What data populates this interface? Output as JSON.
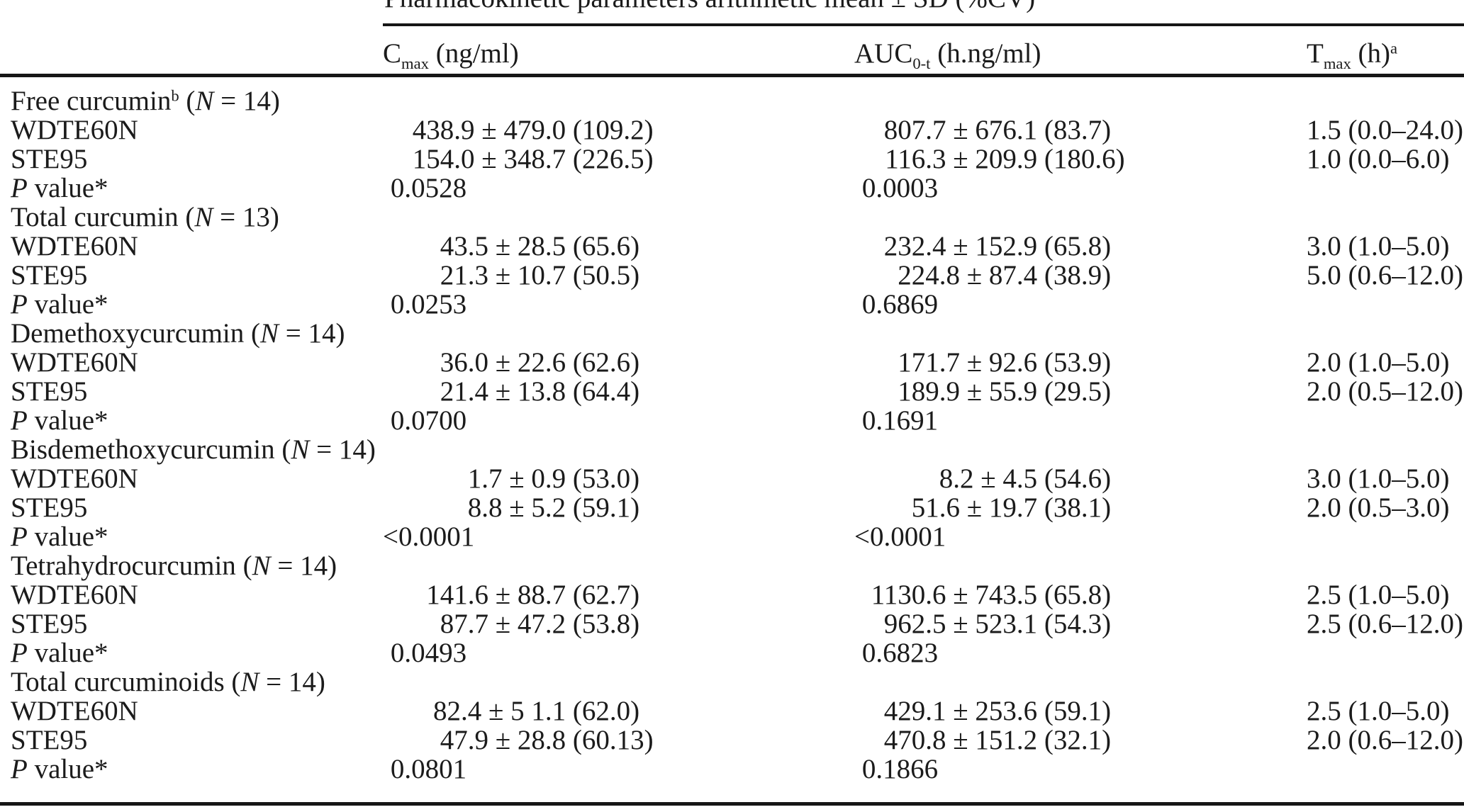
{
  "table": {
    "spanner_title": "Pharmacokinetic parameters arithmetic mean ± SD (%CV)",
    "columns": [
      {
        "prefix": "C",
        "sub": "max",
        "suffix": " (ng/ml)",
        "sup": ""
      },
      {
        "prefix": "AUC",
        "sub": "0-t",
        "suffix": " (h.ng/ml)",
        "sup": ""
      },
      {
        "prefix": "T",
        "sub": "max",
        "suffix": " (h)",
        "sup": "a"
      }
    ],
    "groups": [
      {
        "name": "Free curcumin",
        "name_sup": "b",
        "n_note": " (N = 14)",
        "rows": [
          {
            "label": "WDTE60N",
            "cmax": "438.9 ± 479.0 (109.2)",
            "auc": "807.7 ± 676.1 (83.7)",
            "tmax": "1.5 (0.0–24.0)"
          },
          {
            "label": "STE95",
            "cmax": "154.0 ± 348.7 (226.5)",
            "auc": "116.3 ± 209.9 (180.6)",
            "tmax": "1.0 (0.0–6.0)"
          },
          {
            "label": "P value*",
            "cmax": "0.0528",
            "auc": "0.0003",
            "tmax": ""
          }
        ]
      },
      {
        "name": "Total curcumin",
        "name_sup": "",
        "n_note": " (N = 13)",
        "rows": [
          {
            "label": "WDTE60N",
            "cmax": "43.5 ± 28.5 (65.6)",
            "auc": "232.4 ± 152.9 (65.8)",
            "tmax": "3.0 (1.0–5.0)"
          },
          {
            "label": "STE95",
            "cmax": "21.3 ± 10.7 (50.5)",
            "auc": "224.8 ± 87.4 (38.9)",
            "tmax": "5.0 (0.6–12.0)"
          },
          {
            "label": "P value*",
            "cmax": "0.0253",
            "auc": "0.6869",
            "tmax": ""
          }
        ]
      },
      {
        "name": "Demethoxycurcumin",
        "name_sup": "",
        "n_note": " (N = 14)",
        "rows": [
          {
            "label": "WDTE60N",
            "cmax": "36.0 ± 22.6 (62.6)",
            "auc": "171.7 ± 92.6 (53.9)",
            "tmax": "2.0 (1.0–5.0)"
          },
          {
            "label": "STE95",
            "cmax": "21.4 ± 13.8 (64.4)",
            "auc": "189.9 ± 55.9 (29.5)",
            "tmax": "2.0 (0.5–12.0)"
          },
          {
            "label": "P value*",
            "cmax": "0.0700",
            "auc": "0.1691",
            "tmax": ""
          }
        ]
      },
      {
        "name": "Bisdemethoxycurcumin",
        "name_sup": "",
        "n_note": " (N = 14)",
        "rows": [
          {
            "label": "WDTE60N",
            "cmax": "1.7 ± 0.9 (53.0)",
            "auc": "8.2 ± 4.5 (54.6)",
            "tmax": "3.0 (1.0–5.0)"
          },
          {
            "label": "STE95",
            "cmax": "8.8 ± 5.2 (59.1)",
            "auc": "51.6 ± 19.7 (38.1)",
            "tmax": "2.0 (0.5–3.0)"
          },
          {
            "label": "P value*",
            "cmax": "<0.0001",
            "auc": "<0.0001",
            "tmax": ""
          }
        ]
      },
      {
        "name": "Tetrahydrocurcumin",
        "name_sup": "",
        "n_note": " (N = 14)",
        "rows": [
          {
            "label": "WDTE60N",
            "cmax": "141.6 ± 88.7 (62.7)",
            "auc": "1130.6 ± 743.5 (65.8)",
            "tmax": "2.5 (1.0–5.0)"
          },
          {
            "label": "STE95",
            "cmax": "87.7 ± 47.2 (53.8)",
            "auc": "962.5 ± 523.1 (54.3)",
            "tmax": "2.5 (0.6–12.0)"
          },
          {
            "label": "P value*",
            "cmax": "0.0493",
            "auc": "0.6823",
            "tmax": ""
          }
        ]
      },
      {
        "name": "Total curcuminoids",
        "name_sup": "",
        "n_note": " (N = 14)",
        "rows": [
          {
            "label": "WDTE60N",
            "cmax": "82.4 ± 5 1.1 (62.0)",
            "auc": "429.1 ± 253.6 (59.1)",
            "tmax": "2.5 (1.0–5.0)"
          },
          {
            "label": "STE95",
            "cmax": "47.9 ± 28.8 (60.13)",
            "auc": "470.8 ± 151.2 (32.1)",
            "tmax": "2.0 (0.6–12.0)"
          },
          {
            "label": "P value*",
            "cmax": "0.0801",
            "auc": "0.1866",
            "tmax": ""
          }
        ]
      }
    ]
  }
}
